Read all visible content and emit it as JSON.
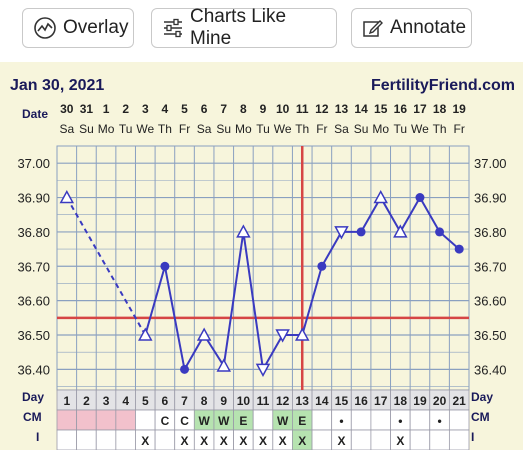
{
  "toolbar": {
    "overlay_label": "Overlay",
    "charts_like_mine_label": "Charts Like Mine",
    "annotate_label": "Annotate"
  },
  "header": {
    "date": "Jan 30, 2021",
    "site": "FertilityFriend.com"
  },
  "labels": {
    "date_row": "Date",
    "day_row": "Day",
    "cm_row": "CM",
    "i_row": "I"
  },
  "colors": {
    "chart_background": "#f7f5dc",
    "grid": "#8aa0c0",
    "temp_line": "#3a3ac0",
    "coverline": "#d64545",
    "period_cell": "#f2c1cc",
    "fertile_cell": "#b6e3b0"
  },
  "chart_data": {
    "type": "line",
    "dates": [
      "30",
      "31",
      "1",
      "2",
      "3",
      "4",
      "5",
      "6",
      "7",
      "8",
      "9",
      "10",
      "11",
      "12",
      "13",
      "14",
      "15",
      "16",
      "17",
      "18",
      "19"
    ],
    "weekdays": [
      "Sa",
      "Su",
      "Mo",
      "Tu",
      "We",
      "Th",
      "Fr",
      "Sa",
      "Su",
      "Mo",
      "Tu",
      "We",
      "Th",
      "Fr",
      "Sa",
      "Su",
      "Mo",
      "Tu",
      "We",
      "Th",
      "Fr"
    ],
    "cycle_days": [
      1,
      2,
      3,
      4,
      5,
      6,
      7,
      8,
      9,
      10,
      11,
      12,
      13,
      14,
      15,
      16,
      17,
      18,
      19,
      20,
      21
    ],
    "y_ticks": [
      "37.00",
      "36.90",
      "36.80",
      "36.70",
      "36.60",
      "36.50",
      "36.40"
    ],
    "ylim": [
      36.34,
      37.05
    ],
    "temperatures": [
      36.9,
      null,
      null,
      null,
      36.5,
      36.7,
      36.4,
      36.5,
      36.41,
      36.8,
      36.4,
      36.5,
      36.5,
      36.7,
      36.8,
      36.8,
      36.9,
      36.8,
      36.9,
      36.8,
      36.75
    ],
    "point_styles": [
      "open-up",
      "",
      "",
      "",
      "open-up",
      "filled",
      "filled",
      "open-up",
      "open-up",
      "open-up",
      "open-down",
      "open-down",
      "open-up",
      "filled",
      "open-down",
      "filled",
      "open-up",
      "open-up",
      "filled",
      "filled",
      "filled"
    ],
    "dashed_segment": [
      0,
      4
    ],
    "coverline": 36.55,
    "ovulation_line_day": 13,
    "cm": [
      "",
      "",
      "",
      "",
      "",
      "C",
      "C",
      "W",
      "W",
      "E",
      "",
      "W",
      "E",
      "",
      "•",
      "",
      "",
      "•",
      "",
      "•",
      ""
    ],
    "cm_cell_type": [
      "period",
      "period",
      "period",
      "period",
      "",
      "",
      "",
      "fertile",
      "fertile",
      "fertile",
      "",
      "fertile",
      "fertile",
      "",
      "",
      "",
      "",
      "",
      "",
      "",
      ""
    ],
    "intercourse": [
      "",
      "",
      "",
      "",
      "X",
      "",
      "X",
      "X",
      "X",
      "X",
      "X",
      "X",
      "X",
      "",
      "X",
      "",
      "",
      "X",
      "",
      "",
      ""
    ]
  }
}
